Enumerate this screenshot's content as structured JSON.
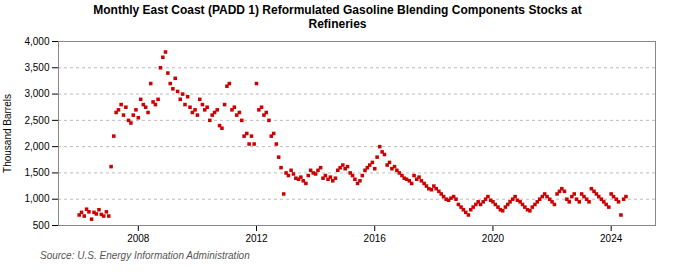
{
  "chart_data": {
    "type": "scatter",
    "title": "Monthly East Coast (PADD 1) Reformulated Gasoline Blending Components Stocks at\nRefineries",
    "ylabel": "Thousand Barrels",
    "annotations": [
      "Source: U.S. Energy Information Administration"
    ],
    "color": "#cc0000",
    "marker": "square",
    "grid": true,
    "ylim": [
      500,
      4000
    ],
    "yticks": [
      500,
      {
        "value": 1000,
        "label": "1,000"
      },
      {
        "value": 1500,
        "label": "1,500"
      },
      {
        "value": 2000,
        "label": "2,000"
      },
      {
        "value": 2500,
        "label": "2,500"
      },
      {
        "value": 3000,
        "label": "3,000"
      },
      {
        "value": 3500,
        "label": "3,500"
      },
      {
        "value": 4000,
        "label": "4,000"
      }
    ],
    "xlim": [
      2005.3,
      2025.5
    ],
    "xticks": [
      2008,
      2012,
      2016,
      2020,
      2024
    ],
    "x": [
      2006.0,
      2006.08,
      2006.17,
      2006.25,
      2006.33,
      2006.42,
      2006.5,
      2006.58,
      2006.67,
      2006.75,
      2006.83,
      2006.92,
      2007.0,
      2007.08,
      2007.17,
      2007.25,
      2007.33,
      2007.42,
      2007.5,
      2007.58,
      2007.67,
      2007.75,
      2007.83,
      2007.92,
      2008.0,
      2008.08,
      2008.17,
      2008.25,
      2008.33,
      2008.42,
      2008.5,
      2008.58,
      2008.67,
      2008.75,
      2008.83,
      2008.92,
      2009.0,
      2009.08,
      2009.17,
      2009.25,
      2009.33,
      2009.42,
      2009.5,
      2009.58,
      2009.67,
      2009.75,
      2009.83,
      2009.92,
      2010.0,
      2010.08,
      2010.17,
      2010.25,
      2010.33,
      2010.42,
      2010.5,
      2010.58,
      2010.67,
      2010.75,
      2010.83,
      2010.92,
      2011.0,
      2011.08,
      2011.17,
      2011.25,
      2011.33,
      2011.42,
      2011.5,
      2011.58,
      2011.67,
      2011.75,
      2011.83,
      2011.92,
      2012.0,
      2012.08,
      2012.17,
      2012.25,
      2012.33,
      2012.42,
      2012.5,
      2012.58,
      2012.67,
      2012.75,
      2012.83,
      2012.92,
      2013.0,
      2013.08,
      2013.17,
      2013.25,
      2013.33,
      2013.42,
      2013.5,
      2013.58,
      2013.67,
      2013.75,
      2013.83,
      2013.92,
      2014.0,
      2014.08,
      2014.17,
      2014.25,
      2014.33,
      2014.42,
      2014.5,
      2014.58,
      2014.67,
      2014.75,
      2014.83,
      2014.92,
      2015.0,
      2015.08,
      2015.17,
      2015.25,
      2015.33,
      2015.42,
      2015.5,
      2015.58,
      2015.67,
      2015.75,
      2015.83,
      2015.92,
      2016.0,
      2016.08,
      2016.17,
      2016.25,
      2016.33,
      2016.42,
      2016.5,
      2016.58,
      2016.67,
      2016.75,
      2016.83,
      2016.92,
      2017.0,
      2017.08,
      2017.17,
      2017.25,
      2017.33,
      2017.42,
      2017.5,
      2017.58,
      2017.67,
      2017.75,
      2017.83,
      2017.92,
      2018.0,
      2018.08,
      2018.17,
      2018.25,
      2018.33,
      2018.42,
      2018.5,
      2018.58,
      2018.67,
      2018.75,
      2018.83,
      2018.92,
      2019.0,
      2019.08,
      2019.17,
      2019.25,
      2019.33,
      2019.42,
      2019.5,
      2019.58,
      2019.67,
      2019.75,
      2019.83,
      2019.92,
      2020.0,
      2020.08,
      2020.17,
      2020.25,
      2020.33,
      2020.42,
      2020.5,
      2020.58,
      2020.67,
      2020.75,
      2020.83,
      2020.92,
      2021.0,
      2021.08,
      2021.17,
      2021.25,
      2021.33,
      2021.42,
      2021.5,
      2021.58,
      2021.67,
      2021.75,
      2021.83,
      2021.92,
      2022.0,
      2022.08,
      2022.17,
      2022.25,
      2022.33,
      2022.42,
      2022.5,
      2022.58,
      2022.67,
      2022.75,
      2022.83,
      2022.92,
      2023.0,
      2023.08,
      2023.17,
      2023.25,
      2023.33,
      2023.42,
      2023.5,
      2023.58,
      2023.67,
      2023.75,
      2023.83,
      2023.92,
      2024.0,
      2024.08,
      2024.17,
      2024.25,
      2024.33,
      2024.42,
      2024.5
    ],
    "values": [
      700,
      750,
      680,
      810,
      760,
      620,
      750,
      720,
      800,
      710,
      680,
      760,
      680,
      1620,
      2200,
      2650,
      2700,
      2800,
      2600,
      2750,
      2500,
      2450,
      2600,
      2700,
      2550,
      2900,
      2800,
      2750,
      2650,
      3200,
      2850,
      2800,
      2900,
      3500,
      3700,
      3800,
      3400,
      3200,
      3100,
      3300,
      3050,
      2900,
      3000,
      2800,
      2950,
      2750,
      2650,
      2700,
      2600,
      2900,
      2800,
      2700,
      2750,
      2500,
      2600,
      2650,
      2700,
      2400,
      2350,
      2800,
      3150,
      3200,
      2700,
      2750,
      2600,
      2650,
      2500,
      2200,
      2250,
      2050,
      2200,
      2050,
      3200,
      2700,
      2750,
      2600,
      2650,
      2500,
      2200,
      2250,
      2050,
      1800,
      1600,
      1100,
      1500,
      1450,
      1550,
      1480,
      1400,
      1380,
      1420,
      1350,
      1300,
      1450,
      1550,
      1500,
      1480,
      1550,
      1600,
      1400,
      1450,
      1380,
      1420,
      1350,
      1400,
      1550,
      1600,
      1650,
      1580,
      1620,
      1500,
      1450,
      1380,
      1300,
      1350,
      1450,
      1550,
      1600,
      1650,
      1700,
      1580,
      1800,
      2000,
      1900,
      1850,
      1650,
      1700,
      1580,
      1620,
      1550,
      1500,
      1450,
      1400,
      1380,
      1350,
      1300,
      1450,
      1380,
      1420,
      1350,
      1300,
      1250,
      1200,
      1180,
      1250,
      1200,
      1150,
      1100,
      1050,
      1000,
      980,
      1020,
      1050,
      1000,
      900,
      850,
      800,
      750,
      700,
      800,
      850,
      900,
      950,
      900,
      950,
      1000,
      1050,
      980,
      950,
      900,
      850,
      800,
      780,
      850,
      900,
      950,
      1000,
      1050,
      980,
      950,
      900,
      850,
      800,
      780,
      850,
      900,
      950,
      1000,
      1050,
      1100,
      1050,
      1000,
      950,
      900,
      1100,
      1150,
      1200,
      1150,
      1000,
      950,
      1050,
      1100,
      1000,
      950,
      1100,
      1050,
      1000,
      950,
      1200,
      1150,
      1100,
      1050,
      1000,
      950,
      900,
      850,
      1100,
      1050,
      1000,
      950,
      700,
      1000,
      1050
    ]
  }
}
